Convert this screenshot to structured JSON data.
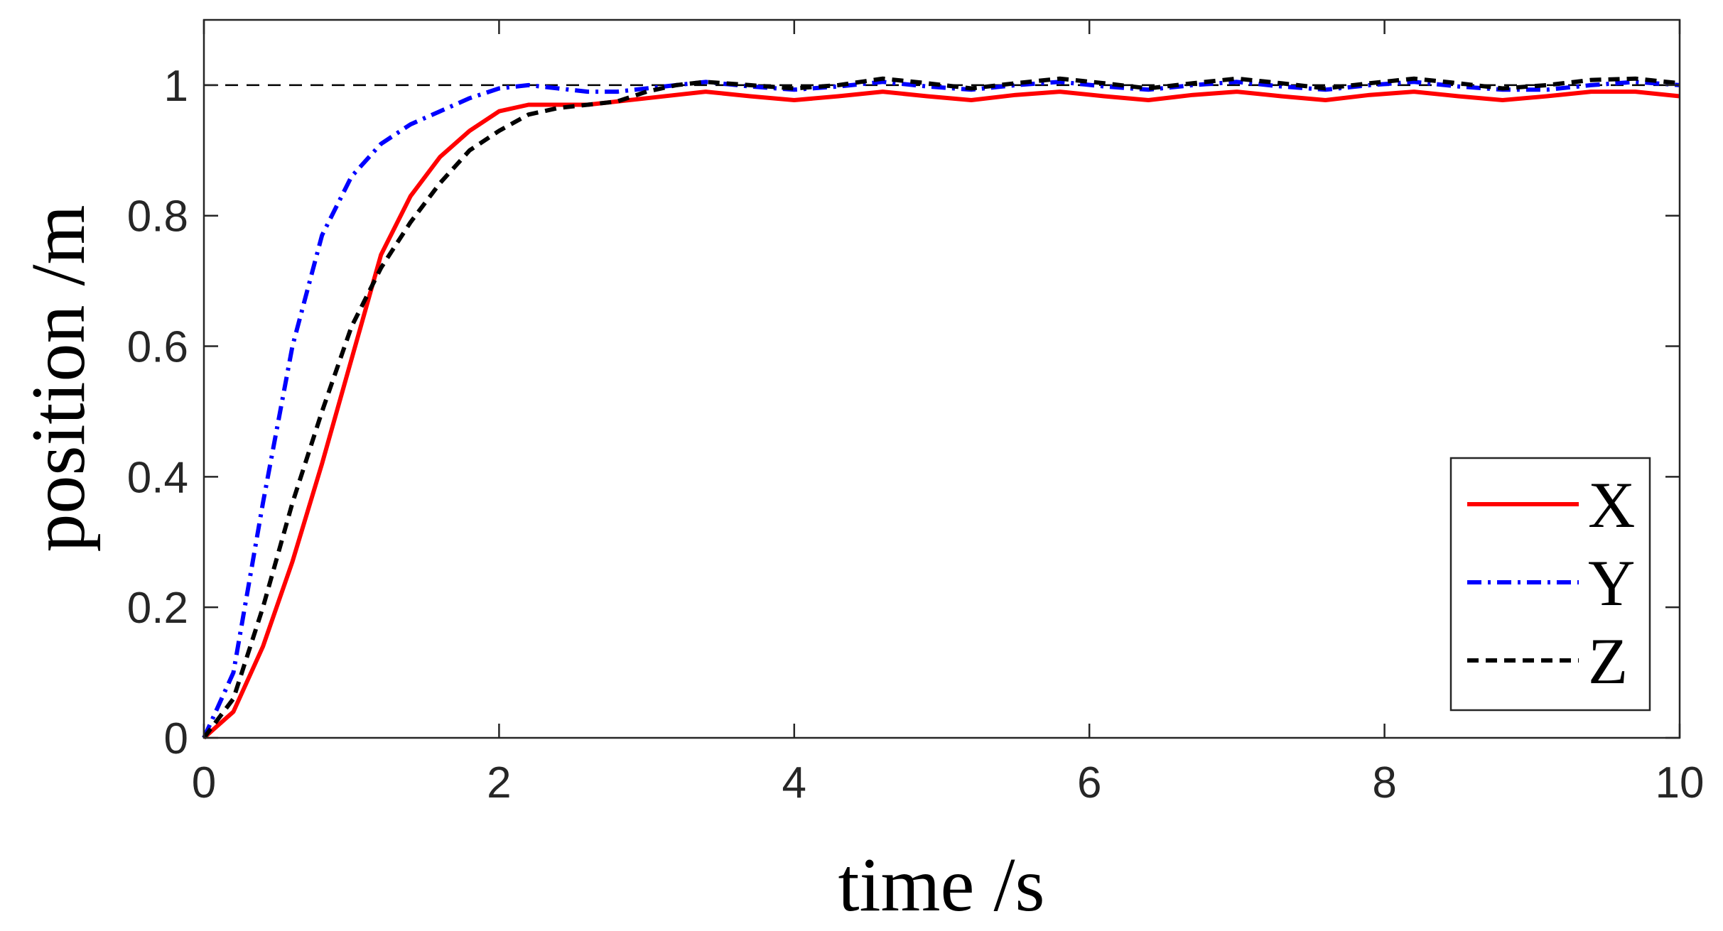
{
  "chart_data": {
    "type": "line",
    "xlabel": "time /s",
    "ylabel": "position /m",
    "xlim": [
      0,
      10
    ],
    "ylim": [
      0,
      1.1
    ],
    "xticks": [
      "0",
      "2",
      "4",
      "6",
      "8",
      "10"
    ],
    "yticks": [
      "0",
      "0.2",
      "0.4",
      "0.6",
      "0.8",
      "1"
    ],
    "reference_line": {
      "y": 1,
      "style": "dashed",
      "color": "#000000"
    },
    "legend_position": "bottom-right",
    "series": [
      {
        "name": "X",
        "color": "#ff0000",
        "style": "solid",
        "x": [
          0,
          0.2,
          0.4,
          0.6,
          0.8,
          1.0,
          1.2,
          1.4,
          1.6,
          1.8,
          2.0,
          2.2,
          2.4,
          2.6,
          2.8,
          3.0,
          3.2,
          3.4,
          3.7,
          4.0,
          4.3,
          4.6,
          4.9,
          5.2,
          5.5,
          5.8,
          6.1,
          6.4,
          6.7,
          7.0,
          7.3,
          7.6,
          7.9,
          8.2,
          8.5,
          8.8,
          9.1,
          9.4,
          9.7,
          10.0
        ],
        "y": [
          0,
          0.04,
          0.14,
          0.27,
          0.42,
          0.58,
          0.74,
          0.83,
          0.89,
          0.93,
          0.96,
          0.97,
          0.97,
          0.97,
          0.975,
          0.98,
          0.985,
          0.99,
          0.983,
          0.977,
          0.983,
          0.99,
          0.983,
          0.977,
          0.985,
          0.99,
          0.983,
          0.977,
          0.985,
          0.99,
          0.983,
          0.977,
          0.985,
          0.99,
          0.983,
          0.977,
          0.983,
          0.99,
          0.99,
          0.983
        ]
      },
      {
        "name": "Y",
        "color": "#0000ff",
        "style": "dashdot",
        "x": [
          0,
          0.2,
          0.4,
          0.6,
          0.8,
          1.0,
          1.2,
          1.4,
          1.6,
          1.8,
          2.0,
          2.2,
          2.4,
          2.6,
          2.8,
          3.0,
          3.2,
          3.4,
          3.7,
          4.0,
          4.3,
          4.6,
          4.9,
          5.2,
          5.5,
          5.8,
          6.1,
          6.4,
          6.7,
          7.0,
          7.3,
          7.6,
          7.9,
          8.2,
          8.5,
          8.8,
          9.1,
          9.4,
          9.7,
          10.0
        ],
        "y": [
          0,
          0.1,
          0.36,
          0.6,
          0.77,
          0.86,
          0.91,
          0.94,
          0.96,
          0.98,
          0.995,
          1.0,
          0.995,
          0.99,
          0.99,
          0.995,
          1.0,
          1.005,
          0.998,
          0.993,
          0.998,
          1.005,
          0.998,
          0.993,
          1.0,
          1.005,
          0.998,
          0.993,
          1.0,
          1.005,
          0.998,
          0.993,
          1.0,
          1.005,
          0.998,
          0.993,
          0.993,
          1.0,
          1.005,
          1.0
        ]
      },
      {
        "name": "Z",
        "color": "#000000",
        "style": "dashed",
        "x": [
          0,
          0.2,
          0.4,
          0.6,
          0.8,
          1.0,
          1.2,
          1.4,
          1.6,
          1.8,
          2.0,
          2.2,
          2.4,
          2.6,
          2.8,
          3.0,
          3.2,
          3.4,
          3.7,
          4.0,
          4.3,
          4.6,
          4.9,
          5.2,
          5.5,
          5.8,
          6.1,
          6.4,
          6.7,
          7.0,
          7.3,
          7.6,
          7.9,
          8.2,
          8.5,
          8.8,
          9.1,
          9.4,
          9.7,
          10.0
        ],
        "y": [
          0,
          0.06,
          0.2,
          0.36,
          0.5,
          0.63,
          0.72,
          0.79,
          0.85,
          0.9,
          0.93,
          0.955,
          0.965,
          0.97,
          0.975,
          0.99,
          1.0,
          1.005,
          1.0,
          0.995,
          1.0,
          1.01,
          1.003,
          0.995,
          1.003,
          1.01,
          1.003,
          0.995,
          1.003,
          1.01,
          1.003,
          0.995,
          1.003,
          1.01,
          1.003,
          0.995,
          1.0,
          1.008,
          1.01,
          1.003
        ]
      }
    ]
  }
}
